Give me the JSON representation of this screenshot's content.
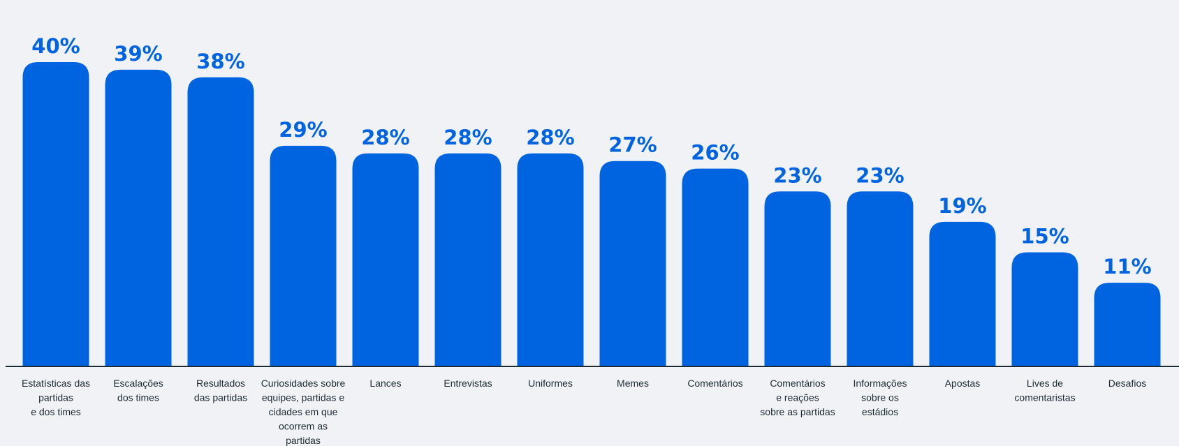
{
  "colors": {
    "bar": "#0064e0",
    "label": "#0064e0",
    "category_text": "#1c2b33",
    "axis": "#1c2b33",
    "background": "#f1f2f6"
  },
  "chart_data": {
    "type": "bar",
    "title": "",
    "xlabel": "",
    "ylabel": "",
    "ylim": [
      0,
      40
    ],
    "grid": false,
    "legend": "none",
    "unit": "%",
    "categories": [
      "Estatísticas das partidas e dos times",
      "Escalações dos times",
      "Resultados das partidas",
      "Curiosidades sobre equipes, partidas e cidades em que ocorrem as partidas",
      "Lances",
      "Entrevistas",
      "Uniformes",
      "Memes",
      "Comentários",
      "Comentários e reações sobre as partidas",
      "Informações sobre os estádios",
      "Apostas",
      "Lives de comentaristas",
      "Desafios"
    ],
    "category_lines": [
      [
        "Estatísticas das",
        "partidas",
        "e dos times"
      ],
      [
        "Escalações",
        "dos times"
      ],
      [
        "Resultados",
        "das partidas"
      ],
      [
        "Curiosidades sobre",
        "equipes, partidas e",
        "cidades em que",
        "ocorrem as",
        "partidas"
      ],
      [
        "Lances"
      ],
      [
        "Entrevistas"
      ],
      [
        "Uniformes"
      ],
      [
        "Memes"
      ],
      [
        "Comentários"
      ],
      [
        "Comentários",
        "e reações",
        "sobre as partidas"
      ],
      [
        "Informações",
        "sobre os",
        "estádios"
      ],
      [
        "Apostas"
      ],
      [
        "Lives de",
        "comentaristas"
      ],
      [
        "Desafios"
      ]
    ],
    "values": [
      40,
      39,
      38,
      29,
      28,
      28,
      28,
      27,
      26,
      23,
      23,
      19,
      15,
      11
    ],
    "data_labels": [
      "40%",
      "39%",
      "38%",
      "29%",
      "28%",
      "28%",
      "28%",
      "27%",
      "26%",
      "23%",
      "23%",
      "19%",
      "15%",
      "11%"
    ]
  }
}
